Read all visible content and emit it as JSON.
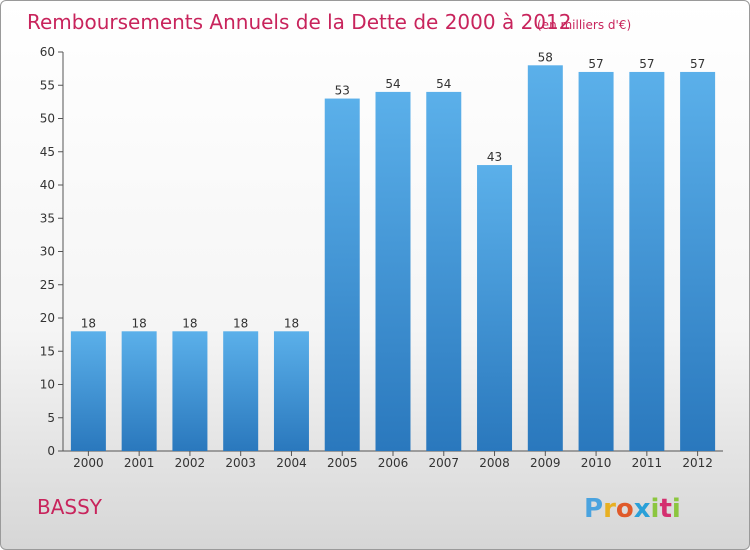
{
  "chart_data": {
    "type": "bar",
    "title": "Remboursements Annuels de la Dette de 2000 à 2012",
    "unit_label": "(en milliers d'€)",
    "categories": [
      "2000",
      "2001",
      "2002",
      "2003",
      "2004",
      "2005",
      "2006",
      "2007",
      "2008",
      "2009",
      "2010",
      "2011",
      "2012"
    ],
    "values": [
      18,
      18,
      18,
      18,
      18,
      53,
      54,
      54,
      43,
      58,
      57,
      57,
      57
    ],
    "ylim": [
      0,
      60
    ],
    "yticks": [
      0,
      5,
      10,
      15,
      20,
      25,
      30,
      35,
      40,
      45,
      50,
      55,
      60
    ],
    "grid": false,
    "bar_color": "#3a8ed6"
  },
  "footer": {
    "town": "BASSY",
    "brand_letters": [
      "P",
      "r",
      "o",
      "x",
      "i",
      "t",
      "i"
    ],
    "brand_colors": [
      "#4aa3df",
      "#e8b022",
      "#e05a2a",
      "#2aa0d8",
      "#8cc63f",
      "#d42f6f",
      "#8cc63f"
    ]
  }
}
